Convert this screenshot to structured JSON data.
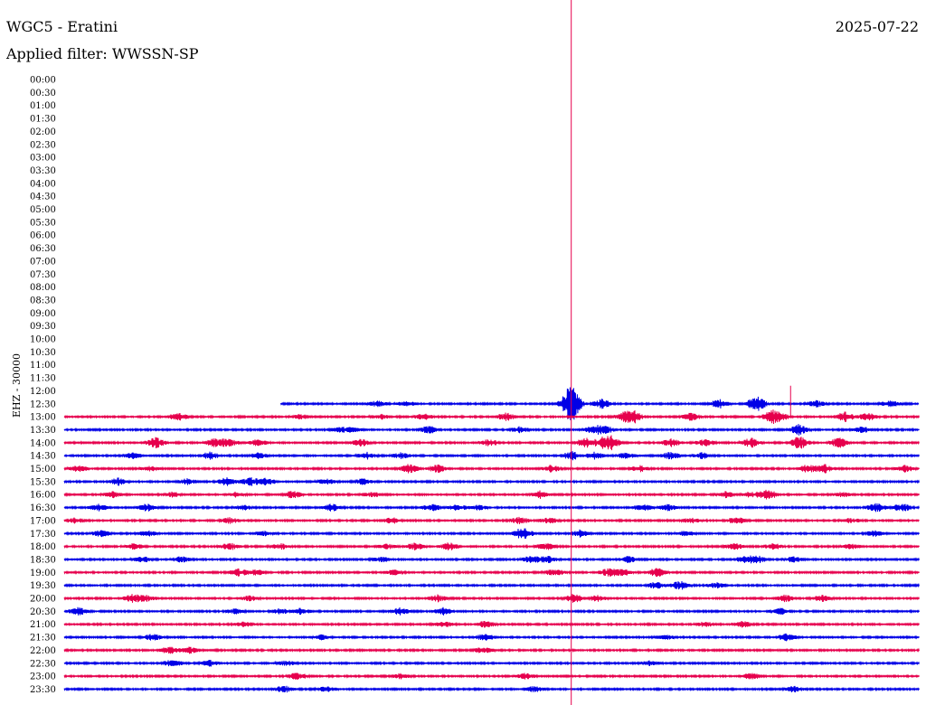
{
  "header": {
    "station": "WGC5 - Eratini",
    "date": "2025-07-22",
    "filter": "Applied filter: WWSSN-SP",
    "channel": "EHZ - 30000"
  },
  "colors": {
    "trace_a": "#0000e6",
    "trace_b": "#e6004d",
    "marker": "#e6004d"
  },
  "chart_data": {
    "type": "line",
    "title": "WGC5 - Eratini",
    "subtitle": "Applied filter: WWSSN-SP",
    "ylabel": "EHZ - 30000",
    "x_unit": "minutes within each 30-minute row",
    "xlim": [
      0,
      30
    ],
    "y_ticks": [
      "00:00",
      "00:30",
      "01:00",
      "01:30",
      "02:00",
      "02:30",
      "03:00",
      "03:30",
      "04:00",
      "04:30",
      "05:00",
      "05:30",
      "06:00",
      "06:30",
      "07:00",
      "07:30",
      "08:00",
      "08:30",
      "09:00",
      "09:30",
      "10:00",
      "10:30",
      "11:00",
      "11:30",
      "12:00",
      "12:30",
      "13:00",
      "13:30",
      "14:00",
      "14:30",
      "15:00",
      "15:30",
      "16:00",
      "16:30",
      "17:00",
      "17:30",
      "18:00",
      "18:30",
      "19:00",
      "19:30",
      "20:00",
      "20:30",
      "21:00",
      "21:30",
      "22:00",
      "22:30",
      "23:00",
      "23:30"
    ],
    "data_start": "12:38",
    "marker_x_minute": 17.8,
    "series": [
      {
        "row": "12:30",
        "start_min": 7.6,
        "bursts": [
          [
            11.0,
            1.2
          ],
          [
            12.0,
            1.0
          ],
          [
            17.7,
            4.8
          ],
          [
            17.9,
            3.8
          ],
          [
            18.9,
            2.2
          ],
          [
            23.0,
            1.8
          ],
          [
            24.3,
            3.5
          ],
          [
            26.4,
            1.2
          ],
          [
            29.0,
            1.3
          ]
        ]
      },
      {
        "row": "13:00",
        "start_min": 0,
        "bursts": [
          [
            4.0,
            1.6
          ],
          [
            8.3,
            1.0
          ],
          [
            11.1,
            1.0
          ],
          [
            12.6,
            1.2
          ],
          [
            15.5,
            1.6
          ],
          [
            19.7,
            2.4
          ],
          [
            20.0,
            2.0
          ],
          [
            22.0,
            1.6
          ],
          [
            24.8,
            2.2
          ],
          [
            25.1,
            1.8
          ],
          [
            27.4,
            2.0
          ],
          [
            28.2,
            1.5
          ]
        ]
      },
      {
        "row": "13:30",
        "start_min": 0,
        "bursts": [
          [
            9.6,
            1.0
          ],
          [
            10.1,
            1.0
          ],
          [
            12.8,
            1.5
          ],
          [
            16.0,
            1.2
          ],
          [
            18.6,
            1.8
          ],
          [
            19.0,
            1.4
          ],
          [
            25.8,
            2.2
          ],
          [
            28.0,
            1.2
          ]
        ]
      },
      {
        "row": "14:00",
        "start_min": 0,
        "bursts": [
          [
            3.2,
            2.2
          ],
          [
            5.3,
            1.8
          ],
          [
            5.8,
            1.5
          ],
          [
            6.8,
            1.4
          ],
          [
            10.4,
            1.6
          ],
          [
            14.9,
            1.4
          ],
          [
            18.3,
            2.0
          ],
          [
            18.9,
            1.8
          ],
          [
            19.2,
            2.4
          ],
          [
            21.3,
            1.6
          ],
          [
            22.5,
            1.5
          ],
          [
            24.1,
            2.0
          ],
          [
            25.8,
            2.6
          ],
          [
            27.2,
            2.0
          ]
        ]
      },
      {
        "row": "14:30",
        "start_min": 0,
        "bursts": [
          [
            2.4,
            1.2
          ],
          [
            5.1,
            1.5
          ],
          [
            6.8,
            1.2
          ],
          [
            10.6,
            1.4
          ],
          [
            11.8,
            1.2
          ],
          [
            17.8,
            1.8
          ],
          [
            18.6,
            1.4
          ],
          [
            19.7,
            1.2
          ],
          [
            21.3,
            1.6
          ],
          [
            22.4,
            1.2
          ]
        ]
      },
      {
        "row": "15:00",
        "start_min": 0,
        "bursts": [
          [
            0.5,
            1.2
          ],
          [
            3.0,
            1.0
          ],
          [
            12.1,
            1.8
          ],
          [
            13.1,
            1.6
          ],
          [
            17.1,
            1.4
          ],
          [
            20.2,
            1.2
          ],
          [
            26.1,
            1.6
          ],
          [
            26.7,
            1.8
          ],
          [
            29.5,
            1.4
          ]
        ]
      },
      {
        "row": "15:30",
        "start_min": 0,
        "bursts": [
          [
            1.9,
            1.4
          ],
          [
            4.3,
            1.2
          ],
          [
            5.7,
            1.6
          ],
          [
            6.5,
            1.8
          ],
          [
            7.1,
            1.5
          ],
          [
            9.2,
            1.0
          ],
          [
            10.5,
            1.2
          ]
        ]
      },
      {
        "row": "16:00",
        "start_min": 0,
        "bursts": [
          [
            1.7,
            1.2
          ],
          [
            3.8,
            1.0
          ],
          [
            6.0,
            1.0
          ],
          [
            8.0,
            1.6
          ],
          [
            10.8,
            1.0
          ],
          [
            16.7,
            1.6
          ],
          [
            23.2,
            1.2
          ],
          [
            24.1,
            1.2
          ],
          [
            24.7,
            2.0
          ],
          [
            27.3,
            1.0
          ]
        ]
      },
      {
        "row": "16:30",
        "start_min": 0,
        "bursts": [
          [
            1.2,
            1.4
          ],
          [
            2.9,
            1.5
          ],
          [
            6.3,
            1.0
          ],
          [
            9.4,
            1.5
          ],
          [
            12.9,
            1.4
          ],
          [
            13.8,
            1.2
          ],
          [
            14.5,
            1.0
          ],
          [
            20.3,
            1.4
          ],
          [
            21.2,
            1.2
          ],
          [
            28.5,
            1.8
          ],
          [
            29.4,
            1.6
          ]
        ]
      },
      {
        "row": "17:00",
        "start_min": 0,
        "bursts": [
          [
            0.4,
            1.2
          ],
          [
            5.8,
            1.2
          ],
          [
            11.5,
            1.2
          ],
          [
            16.0,
            1.4
          ],
          [
            17.0,
            1.2
          ],
          [
            22.0,
            1.0
          ],
          [
            23.6,
            1.6
          ],
          [
            27.6,
            1.0
          ]
        ]
      },
      {
        "row": "17:30",
        "start_min": 0,
        "bursts": [
          [
            1.3,
            1.4
          ],
          [
            2.9,
            1.2
          ],
          [
            7.0,
            1.0
          ],
          [
            16.1,
            2.6
          ],
          [
            18.1,
            1.4
          ],
          [
            21.8,
            1.2
          ],
          [
            28.4,
            1.2
          ]
        ]
      },
      {
        "row": "18:00",
        "start_min": 0,
        "bursts": [
          [
            2.4,
            1.2
          ],
          [
            5.8,
            1.4
          ],
          [
            7.6,
            1.2
          ],
          [
            11.3,
            1.0
          ],
          [
            12.3,
            1.4
          ],
          [
            13.5,
            1.6
          ],
          [
            16.9,
            1.4
          ],
          [
            23.5,
            1.4
          ],
          [
            24.9,
            1.2
          ],
          [
            27.6,
            1.0
          ]
        ]
      },
      {
        "row": "18:30",
        "start_min": 0,
        "bursts": [
          [
            2.7,
            1.4
          ],
          [
            4.1,
            1.2
          ],
          [
            11.1,
            1.2
          ],
          [
            16.4,
            1.6
          ],
          [
            17.0,
            1.4
          ],
          [
            19.8,
            1.4
          ],
          [
            23.9,
            1.6
          ],
          [
            24.4,
            1.4
          ],
          [
            25.6,
            1.2
          ]
        ]
      },
      {
        "row": "19:00",
        "start_min": 0,
        "bursts": [
          [
            6.1,
            1.4
          ],
          [
            6.7,
            1.2
          ],
          [
            11.6,
            1.0
          ],
          [
            17.2,
            1.6
          ],
          [
            19.1,
            1.6
          ],
          [
            19.6,
            1.4
          ],
          [
            20.8,
            1.8
          ]
        ]
      },
      {
        "row": "19:30",
        "start_min": 0,
        "bursts": [
          [
            20.8,
            1.4
          ],
          [
            21.6,
            1.8
          ],
          [
            22.9,
            1.2
          ]
        ]
      },
      {
        "row": "20:00",
        "start_min": 0,
        "bursts": [
          [
            2.4,
            1.6
          ],
          [
            2.9,
            1.2
          ],
          [
            6.5,
            1.0
          ],
          [
            13.1,
            1.4
          ],
          [
            17.9,
            1.8
          ],
          [
            18.7,
            1.2
          ],
          [
            25.3,
            1.4
          ],
          [
            26.6,
            1.2
          ]
        ]
      },
      {
        "row": "20:30",
        "start_min": 0,
        "bursts": [
          [
            0.5,
            1.6
          ],
          [
            6.0,
            1.0
          ],
          [
            7.6,
            1.2
          ],
          [
            8.3,
            1.2
          ],
          [
            11.8,
            1.6
          ],
          [
            13.3,
            1.4
          ],
          [
            25.1,
            1.4
          ]
        ]
      },
      {
        "row": "21:00",
        "start_min": 0,
        "bursts": [
          [
            6.3,
            1.0
          ],
          [
            13.3,
            1.2
          ],
          [
            14.8,
            1.4
          ],
          [
            22.5,
            1.0
          ],
          [
            23.8,
            1.2
          ]
        ]
      },
      {
        "row": "21:30",
        "start_min": 0,
        "bursts": [
          [
            3.1,
            1.4
          ],
          [
            9.0,
            1.0
          ],
          [
            14.8,
            1.6
          ],
          [
            21.1,
            1.2
          ],
          [
            25.4,
            1.6
          ]
        ]
      },
      {
        "row": "22:00",
        "start_min": 0,
        "bursts": [
          [
            3.7,
            1.6
          ],
          [
            4.4,
            1.4
          ],
          [
            14.7,
            1.2
          ]
        ]
      },
      {
        "row": "22:30",
        "start_min": 0,
        "bursts": [
          [
            3.8,
            1.6
          ],
          [
            5.1,
            1.2
          ],
          [
            7.8,
            1.0
          ],
          [
            20.6,
            1.0
          ]
        ]
      },
      {
        "row": "23:00",
        "start_min": 0,
        "bursts": [
          [
            8.2,
            1.6
          ],
          [
            11.8,
            1.0
          ],
          [
            16.2,
            1.2
          ],
          [
            24.1,
            1.4
          ]
        ]
      },
      {
        "row": "23:30",
        "start_min": 0,
        "bursts": [
          [
            7.7,
            1.4
          ],
          [
            9.2,
            1.0
          ],
          [
            16.5,
            1.4
          ],
          [
            25.6,
            1.2
          ]
        ]
      }
    ]
  }
}
